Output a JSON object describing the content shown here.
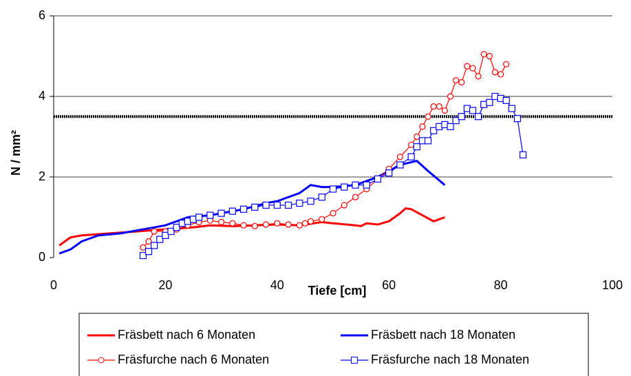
{
  "chart_data": {
    "type": "line",
    "xlabel": "Tiefe [cm]",
    "ylabel": "N / mm²",
    "xlim": [
      0,
      100
    ],
    "xticks": [
      0,
      20,
      40,
      60,
      80,
      100
    ],
    "ylim": [
      0,
      6
    ],
    "yticks": [
      0,
      2,
      4,
      6
    ],
    "grid": true,
    "hline": {
      "value": 3.5,
      "color": "#000000"
    },
    "series": [
      {
        "name": "Fräsbett nach 6 Monaten",
        "color": "#ff0000",
        "marker": "none",
        "x": [
          1,
          3,
          5,
          10,
          15,
          20,
          25,
          28,
          32,
          36,
          40,
          44,
          48,
          50,
          54,
          55,
          56,
          58,
          60,
          62,
          63,
          64,
          66,
          68,
          70
        ],
        "values": [
          0.3,
          0.5,
          0.55,
          0.6,
          0.65,
          0.7,
          0.75,
          0.8,
          0.78,
          0.8,
          0.82,
          0.8,
          0.88,
          0.85,
          0.8,
          0.78,
          0.85,
          0.82,
          0.9,
          1.1,
          1.22,
          1.2,
          1.05,
          0.9,
          1.0
        ]
      },
      {
        "name": "Fräsbett nach 18 Monaten",
        "color": "#0000ff",
        "marker": "none",
        "x": [
          1,
          3,
          5,
          8,
          12,
          16,
          20,
          24,
          28,
          30,
          34,
          38,
          40,
          44,
          46,
          48,
          50,
          54,
          58,
          62,
          65,
          67,
          70
        ],
        "values": [
          0.1,
          0.2,
          0.4,
          0.55,
          0.6,
          0.7,
          0.8,
          1.0,
          1.05,
          1.1,
          1.2,
          1.35,
          1.4,
          1.6,
          1.8,
          1.75,
          1.75,
          1.8,
          2.0,
          2.3,
          2.4,
          2.15,
          1.8
        ]
      },
      {
        "name": "Fräsfurche nach 6 Monaten",
        "color": "#ff0000",
        "marker": "circle",
        "x": [
          16,
          17,
          18,
          20,
          22,
          24,
          26,
          28,
          30,
          32,
          34,
          36,
          38,
          40,
          42,
          44,
          45,
          46,
          48,
          50,
          52,
          54,
          56,
          58,
          60,
          62,
          64,
          65,
          66,
          67,
          68,
          69,
          70,
          71,
          72,
          73,
          74,
          75,
          76,
          77,
          78,
          79,
          80,
          81
        ],
        "values": [
          0.25,
          0.4,
          0.65,
          0.65,
          0.7,
          0.8,
          0.88,
          0.92,
          0.88,
          0.85,
          0.8,
          0.78,
          0.82,
          0.85,
          0.82,
          0.8,
          0.85,
          0.9,
          0.95,
          1.1,
          1.3,
          1.5,
          1.7,
          1.95,
          2.2,
          2.5,
          2.8,
          3.0,
          3.25,
          3.5,
          3.75,
          3.75,
          3.65,
          4.0,
          4.4,
          4.35,
          4.75,
          4.7,
          4.5,
          5.05,
          5.0,
          4.6,
          4.55,
          4.8
        ]
      },
      {
        "name": "Fräsfurche nach 18 Monaten",
        "color": "#0000ff",
        "marker": "square",
        "x": [
          16,
          17,
          18,
          19,
          20,
          21,
          22,
          23,
          24,
          25,
          26,
          28,
          30,
          32,
          34,
          36,
          38,
          40,
          42,
          44,
          46,
          48,
          50,
          52,
          54,
          56,
          58,
          60,
          62,
          64,
          65,
          66,
          67,
          68,
          69,
          70,
          71,
          72,
          73,
          74,
          75,
          76,
          77,
          78,
          79,
          80,
          81,
          82,
          83,
          84
        ],
        "values": [
          0.05,
          0.15,
          0.3,
          0.45,
          0.55,
          0.65,
          0.75,
          0.85,
          0.9,
          0.95,
          1.0,
          1.05,
          1.1,
          1.15,
          1.2,
          1.25,
          1.3,
          1.3,
          1.3,
          1.35,
          1.4,
          1.5,
          1.7,
          1.75,
          1.8,
          1.8,
          1.95,
          2.1,
          2.3,
          2.5,
          2.75,
          2.9,
          2.9,
          3.15,
          3.25,
          3.3,
          3.25,
          3.4,
          3.5,
          3.7,
          3.65,
          3.5,
          3.8,
          3.85,
          4.0,
          3.95,
          3.9,
          3.7,
          3.45,
          2.55
        ]
      }
    ]
  }
}
